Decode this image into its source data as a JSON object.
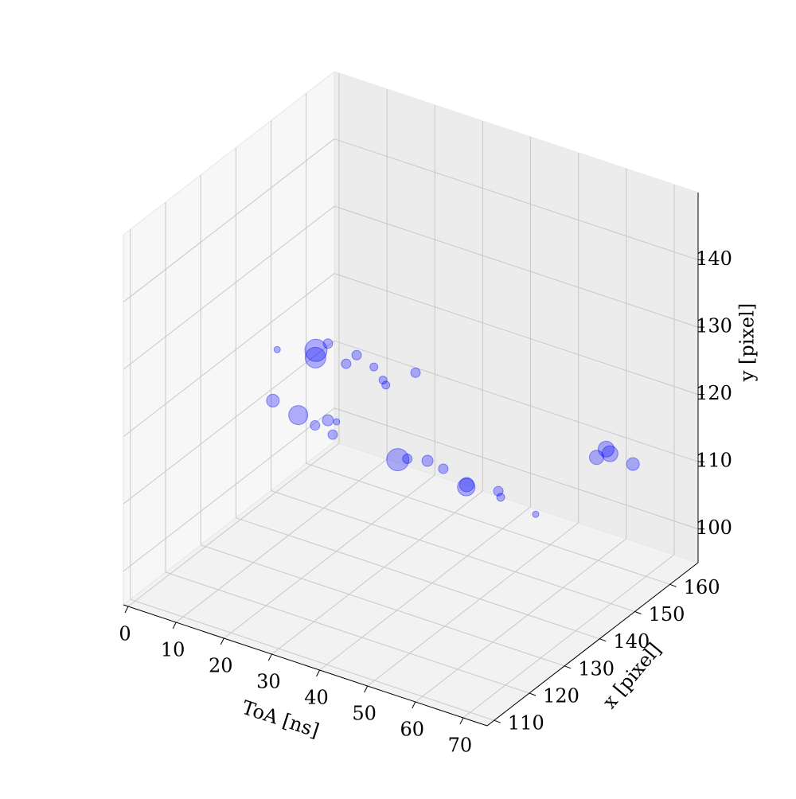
{
  "chart_data": {
    "type": "scatter3d",
    "x_label": "ToA [ns]",
    "y_label": "x [pixel]",
    "z_label": "y [pixel]",
    "xlim": [
      -1,
      75
    ],
    "ylim": [
      108,
      168
    ],
    "zlim": [
      95,
      150
    ],
    "xticks": [
      0,
      10,
      20,
      30,
      40,
      50,
      60,
      70
    ],
    "yticks": [
      110,
      120,
      130,
      140,
      150,
      160
    ],
    "zticks": [
      100,
      110,
      120,
      130,
      140
    ],
    "grid": true,
    "series": [
      {
        "color": "#0000ff",
        "x": [
          9.1,
          17.2,
          17.1,
          19.7,
          25.7,
          23.5,
          29.3,
          31.2,
          31.8,
          38.0,
          8.2,
          13.5,
          19.7,
          21.5,
          17.0,
          20.7,
          34.3,
          36.3,
          40.5,
          43.8,
          48.6,
          48.7,
          55.3,
          55.8,
          63.1,
          58.2,
          60.2,
          61.0,
          65.8
        ],
        "y": [
          138,
          138,
          138,
          138,
          138,
          138,
          138,
          138,
          138,
          138,
          138,
          138,
          138,
          138,
          138,
          138,
          138,
          138,
          138,
          138,
          138,
          138,
          138,
          138,
          138,
          162,
          162,
          162,
          162
        ],
        "z": [
          123.2,
          125.0,
          123.9,
          126.6,
          126.3,
          124.5,
          125.4,
          123.9,
          123.3,
          126.6,
          115.4,
          114.5,
          115.2,
          115.4,
          113.8,
          113.3,
          112.8,
          113.4,
          114.1,
          113.7,
          112.1,
          112.5,
          113.1,
          112.3,
          111.5,
          109.1,
          110.8,
          110.3,
          109.9
        ],
        "sizes": [
          4,
          14,
          13,
          6,
          6,
          6,
          5,
          5,
          5,
          6,
          8,
          12,
          7,
          4,
          6,
          6,
          14,
          6,
          7,
          6,
          11,
          9,
          6,
          5,
          4,
          9,
          10,
          10,
          8
        ]
      }
    ]
  }
}
